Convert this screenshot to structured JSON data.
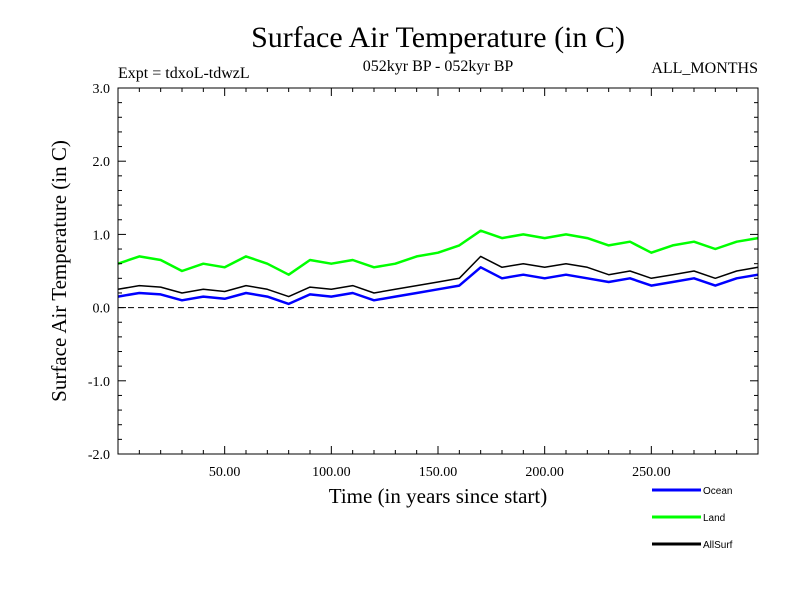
{
  "header": {
    "title": "Surface Air Temperature (in C)",
    "experiment": "Expt = tdxoL-tdwzL",
    "period": "052kyr BP - 052kyr BP",
    "season": "ALL_MONTHS"
  },
  "colors": {
    "ocean": "#0000ff",
    "land": "#00ff00",
    "allsurf": "#000000",
    "zero_line": "#000000"
  },
  "chart_data": {
    "type": "line",
    "title": "Surface Air Temperature (in C)",
    "xlabel": "Time (in years since start)",
    "ylabel": "Surface Air Temperature (in C)",
    "xlim": [
      0,
      300
    ],
    "ylim": [
      -2.0,
      3.0
    ],
    "x_ticks": [
      50,
      100,
      150,
      200,
      250
    ],
    "x_tick_labels": [
      "50.00",
      "100.00",
      "150.00",
      "200.00",
      "250.00"
    ],
    "y_ticks": [
      -2.0,
      -1.0,
      0.0,
      1.0,
      2.0,
      3.0
    ],
    "y_tick_labels": [
      "-2.0",
      "-1.0",
      "0.0",
      "1.0",
      "2.0",
      "3.0"
    ],
    "reference_line": {
      "y": 0.0,
      "style": "dashed"
    },
    "legend_position": "below-right",
    "series": [
      {
        "name": "Ocean",
        "color": "#0000ff",
        "x": [
          0,
          10,
          20,
          30,
          40,
          50,
          60,
          70,
          80,
          90,
          100,
          110,
          120,
          130,
          140,
          150,
          160,
          170,
          180,
          190,
          200,
          210,
          220,
          230,
          240,
          250,
          260,
          270,
          280,
          290,
          300
        ],
        "values": [
          0.15,
          0.2,
          0.18,
          0.1,
          0.15,
          0.12,
          0.2,
          0.15,
          0.05,
          0.18,
          0.15,
          0.2,
          0.1,
          0.15,
          0.2,
          0.25,
          0.3,
          0.55,
          0.4,
          0.45,
          0.4,
          0.45,
          0.4,
          0.35,
          0.4,
          0.3,
          0.35,
          0.4,
          0.3,
          0.4,
          0.45
        ]
      },
      {
        "name": "Land",
        "color": "#00ff00",
        "x": [
          0,
          10,
          20,
          30,
          40,
          50,
          60,
          70,
          80,
          90,
          100,
          110,
          120,
          130,
          140,
          150,
          160,
          170,
          180,
          190,
          200,
          210,
          220,
          230,
          240,
          250,
          260,
          270,
          280,
          290,
          300
        ],
        "values": [
          0.6,
          0.7,
          0.65,
          0.5,
          0.6,
          0.55,
          0.7,
          0.6,
          0.45,
          0.65,
          0.6,
          0.65,
          0.55,
          0.6,
          0.7,
          0.75,
          0.85,
          1.05,
          0.95,
          1.0,
          0.95,
          1.0,
          0.95,
          0.85,
          0.9,
          0.75,
          0.85,
          0.9,
          0.8,
          0.9,
          0.95
        ]
      },
      {
        "name": "AllSurf",
        "color": "#000000",
        "x": [
          0,
          10,
          20,
          30,
          40,
          50,
          60,
          70,
          80,
          90,
          100,
          110,
          120,
          130,
          140,
          150,
          160,
          170,
          180,
          190,
          200,
          210,
          220,
          230,
          240,
          250,
          260,
          270,
          280,
          290,
          300
        ],
        "values": [
          0.25,
          0.3,
          0.28,
          0.2,
          0.25,
          0.22,
          0.3,
          0.25,
          0.15,
          0.28,
          0.25,
          0.3,
          0.2,
          0.25,
          0.3,
          0.35,
          0.4,
          0.7,
          0.55,
          0.6,
          0.55,
          0.6,
          0.55,
          0.45,
          0.5,
          0.4,
          0.45,
          0.5,
          0.4,
          0.5,
          0.55
        ]
      }
    ]
  }
}
